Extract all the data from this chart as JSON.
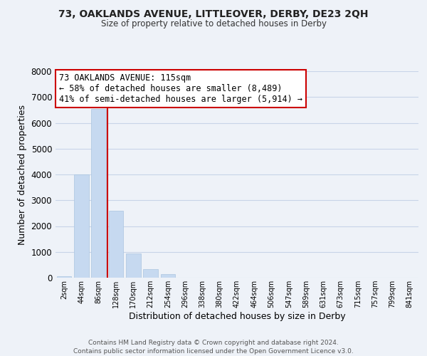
{
  "title": "73, OAKLANDS AVENUE, LITTLEOVER, DERBY, DE23 2QH",
  "subtitle": "Size of property relative to detached houses in Derby",
  "xlabel": "Distribution of detached houses by size in Derby",
  "ylabel": "Number of detached properties",
  "bar_labels": [
    "2sqm",
    "44sqm",
    "86sqm",
    "128sqm",
    "170sqm",
    "212sqm",
    "254sqm",
    "296sqm",
    "338sqm",
    "380sqm",
    "422sqm",
    "464sqm",
    "506sqm",
    "547sqm",
    "589sqm",
    "631sqm",
    "673sqm",
    "715sqm",
    "757sqm",
    "799sqm",
    "841sqm"
  ],
  "bar_values": [
    50,
    4000,
    6550,
    2600,
    950,
    330,
    130,
    0,
    0,
    0,
    0,
    0,
    0,
    0,
    0,
    0,
    0,
    0,
    0,
    0,
    0
  ],
  "bar_color": "#c6d9f0",
  "bar_edge_color": "#aac4e0",
  "vline_color": "#cc0000",
  "annotation_line1": "73 OAKLANDS AVENUE: 115sqm",
  "annotation_line2": "← 58% of detached houses are smaller (8,489)",
  "annotation_line3": "41% of semi-detached houses are larger (5,914) →",
  "annotation_box_color": "#ffffff",
  "annotation_box_edge": "#cc0000",
  "ylim": [
    0,
    8000
  ],
  "yticks": [
    0,
    1000,
    2000,
    3000,
    4000,
    5000,
    6000,
    7000,
    8000
  ],
  "grid_color": "#c8d4e8",
  "background_color": "#eef2f8",
  "footer_line1": "Contains HM Land Registry data © Crown copyright and database right 2024.",
  "footer_line2": "Contains public sector information licensed under the Open Government Licence v3.0."
}
